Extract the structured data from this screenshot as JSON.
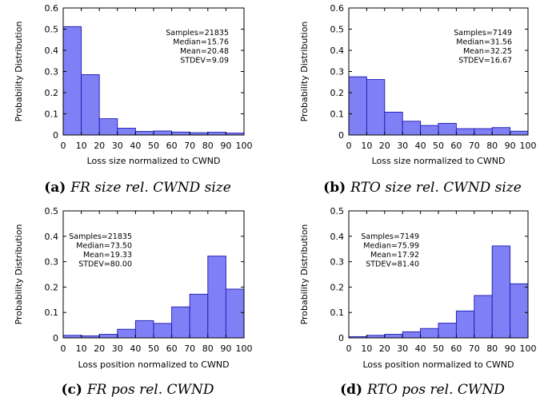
{
  "chart_data": [
    {
      "type": "bar",
      "panel": "a",
      "caption_label": "(a)",
      "caption_title": "FR size rel. CWND size",
      "xlabel": "Loss size normalized to CWND",
      "ylabel": "Probability Distribution",
      "xlim": [
        0,
        100
      ],
      "ylim": [
        0,
        0.6
      ],
      "yticks": [
        "0",
        "0.1",
        "0.2",
        "0.3",
        "0.4",
        "0.5",
        "0.6"
      ],
      "xticks": [
        "0",
        "10",
        "20",
        "30",
        "40",
        "50",
        "60",
        "70",
        "80",
        "90",
        "100"
      ],
      "bin_starts": [
        0,
        10,
        20,
        30,
        40,
        50,
        60,
        70,
        80,
        90
      ],
      "values": [
        0.512,
        0.285,
        0.077,
        0.032,
        0.017,
        0.019,
        0.014,
        0.011,
        0.013,
        0.009
      ],
      "stats": [
        "Samples=21835",
        "Median=15.76",
        "Mean=20.48",
        "STDEV=9.09"
      ],
      "stats_align": "right"
    },
    {
      "type": "bar",
      "panel": "b",
      "caption_label": "(b)",
      "caption_title": "RTO size rel. CWND size",
      "xlabel": "Loss size normalized to CWND",
      "ylabel": "Probability Distribution",
      "xlim": [
        0,
        100
      ],
      "ylim": [
        0,
        0.6
      ],
      "yticks": [
        "0",
        "0.1",
        "0.2",
        "0.3",
        "0.4",
        "0.5",
        "0.6"
      ],
      "xticks": [
        "0",
        "10",
        "20",
        "30",
        "40",
        "50",
        "60",
        "70",
        "80",
        "90",
        "100"
      ],
      "bin_starts": [
        0,
        10,
        20,
        30,
        40,
        50,
        60,
        70,
        80,
        90
      ],
      "values": [
        0.275,
        0.262,
        0.108,
        0.065,
        0.045,
        0.055,
        0.03,
        0.03,
        0.035,
        0.018
      ],
      "stats": [
        "Samples=7149",
        "Median=31.56",
        "Mean=32.25",
        "STDEV=16.67"
      ],
      "stats_align": "right"
    },
    {
      "type": "bar",
      "panel": "c",
      "caption_label": "(c)",
      "caption_title": "FR pos rel. CWND",
      "xlabel": "Loss position normalized to CWND",
      "ylabel": "Probability Distribution",
      "xlim": [
        0,
        100
      ],
      "ylim": [
        0,
        0.5
      ],
      "yticks": [
        "0",
        "0.1",
        "0.2",
        "0.3",
        "0.4",
        "0.5"
      ],
      "xticks": [
        "0",
        "10",
        "20",
        "30",
        "40",
        "50",
        "60",
        "70",
        "80",
        "90",
        "100"
      ],
      "bin_starts": [
        0,
        10,
        20,
        30,
        40,
        50,
        60,
        70,
        80,
        90
      ],
      "values": [
        0.01,
        0.008,
        0.014,
        0.034,
        0.068,
        0.057,
        0.122,
        0.172,
        0.322,
        0.192
      ],
      "stats": [
        "Samples=21835",
        "Median=73.50",
        "Mean=19.33",
        "STDEV=80.00"
      ],
      "stats_align": "right"
    },
    {
      "type": "bar",
      "panel": "d",
      "caption_label": "(d)",
      "caption_title": "RTO pos rel. CWND",
      "xlabel": "Loss position normalized to CWND",
      "ylabel": "Probability Distribution",
      "xlim": [
        0,
        100
      ],
      "ylim": [
        0,
        0.5
      ],
      "yticks": [
        "0",
        "0.1",
        "0.2",
        "0.3",
        "0.4",
        "0.5"
      ],
      "xticks": [
        "0",
        "10",
        "20",
        "30",
        "40",
        "50",
        "60",
        "70",
        "80",
        "90",
        "100"
      ],
      "bin_starts": [
        0,
        10,
        20,
        30,
        40,
        50,
        60,
        70,
        80,
        90
      ],
      "values": [
        0.005,
        0.01,
        0.014,
        0.024,
        0.037,
        0.058,
        0.106,
        0.167,
        0.362,
        0.213
      ],
      "stats": [
        "Samples=7149",
        "Median=75.99",
        "Mean=17.92",
        "STDEV=81.40"
      ],
      "stats_align": "right"
    }
  ],
  "colors": {
    "bar_fill": "#8080f6",
    "bar_stroke": "#1a1ab0",
    "axis": "#000000"
  }
}
